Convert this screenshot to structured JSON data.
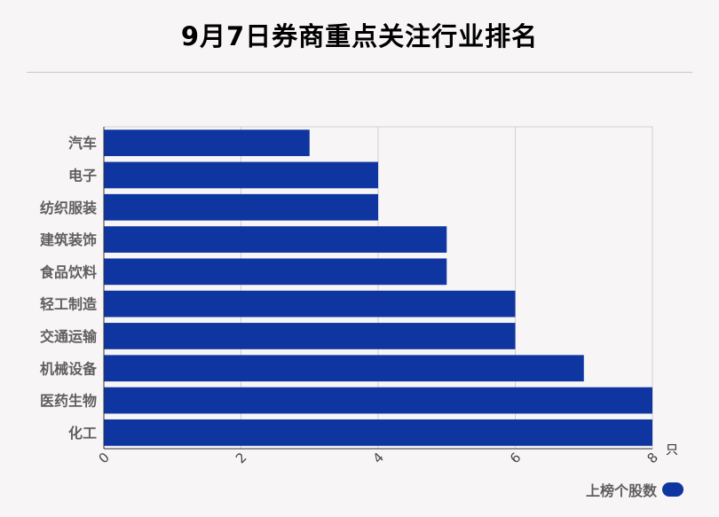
{
  "chart_data": {
    "type": "bar",
    "orientation": "horizontal",
    "title": "9月7日券商重点关注行业排名",
    "categories": [
      "汽车",
      "电子",
      "纺织服装",
      "建筑装饰",
      "食品饮料",
      "轻工制造",
      "交通运输",
      "机械设备",
      "医药生物",
      "化工"
    ],
    "series": [
      {
        "name": "上榜个股数",
        "values": [
          3,
          4,
          4,
          5,
          5,
          6,
          6,
          7,
          8,
          8
        ]
      }
    ],
    "xlim": [
      0,
      8
    ],
    "x_ticks": [
      "0",
      "2",
      "4",
      "6",
      "8"
    ],
    "x_unit": "只",
    "grid": true,
    "legend_position": "bottom-right",
    "bar_color": "#0f35a0"
  }
}
